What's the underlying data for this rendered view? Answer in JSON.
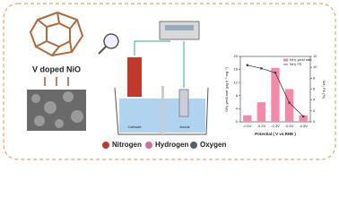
{
  "labels": {
    "material": "V doped NiO",
    "cathode": "Cathode",
    "anode": "Anode"
  },
  "legend": [
    "Nitrogen",
    "Hydrogen",
    "Oxygen"
  ],
  "chart_data": {
    "type": "bar",
    "categories": [
      "-0.1V",
      "-0.2V",
      "-0.3V",
      "-0.4V",
      "-0.5V"
    ],
    "series": [
      {
        "name": "NH₃ yield rate",
        "color": "#f48aa8",
        "values": [
          2,
          6,
          16.5,
          10,
          2
        ]
      },
      {
        "name": "NH₃ FE",
        "color": "#444444",
        "axis": "y2",
        "values": [
          10.4,
          9.8,
          9,
          3.5,
          1
        ]
      }
    ],
    "ylim": [
      0,
      20
    ],
    "yticks": [
      0,
      4,
      8,
      12,
      16,
      20
    ],
    "y2lim": [
      0,
      12
    ],
    "y2ticks": [
      0,
      2,
      4,
      6,
      8,
      10,
      12
    ],
    "x_label": "Potential ( V vs.RHE )",
    "y_label": "NH₃ yield rate (μg h⁻¹ mg⁻¹)",
    "y2_label": "NH₃ FE (%)",
    "legend_position": "upper right"
  }
}
